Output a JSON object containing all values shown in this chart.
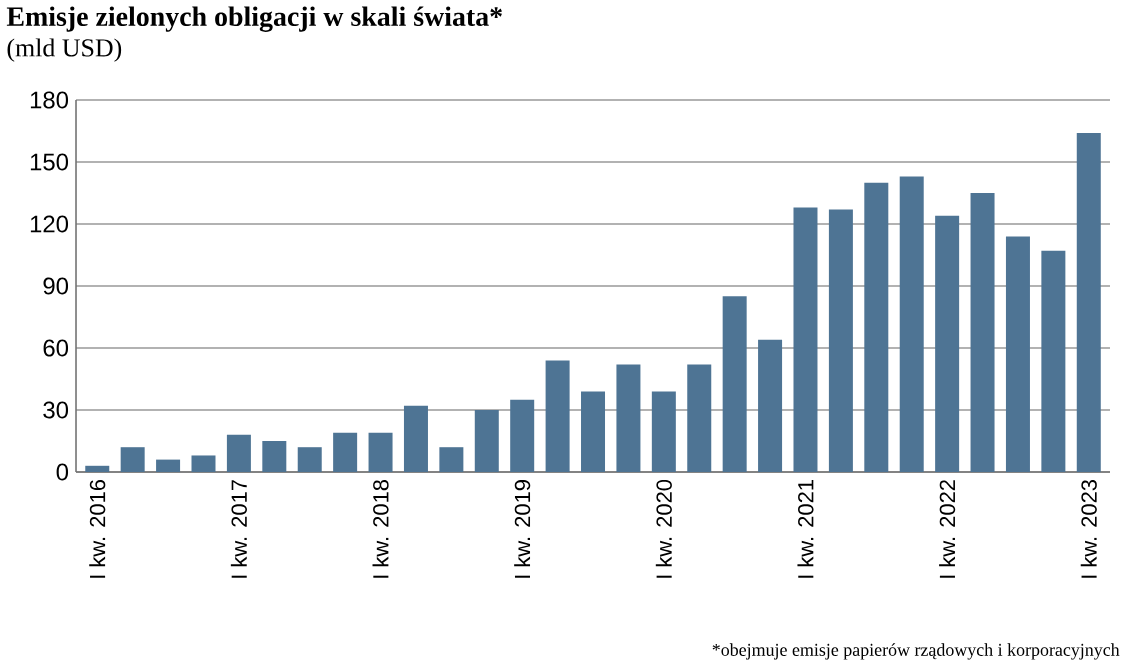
{
  "chart_data": {
    "type": "bar",
    "title": "Emisje zielonych obligacji w skali świata*",
    "subtitle": "(mld USD)",
    "categories": [
      "I kw. 2016",
      null,
      null,
      null,
      "I kw. 2017",
      null,
      null,
      null,
      "I kw. 2018",
      null,
      null,
      null,
      "I kw. 2019",
      null,
      null,
      null,
      "I kw. 2020",
      null,
      null,
      null,
      "I kw. 2021",
      null,
      null,
      null,
      "I kw. 2022",
      null,
      null,
      null,
      "I kw. 2023"
    ],
    "values": [
      3,
      12,
      6,
      8,
      18,
      15,
      12,
      19,
      19,
      32,
      12,
      30,
      35,
      54,
      39,
      52,
      39,
      52,
      85,
      64,
      128,
      127,
      140,
      143,
      124,
      135,
      114,
      107,
      164
    ],
    "color": "#4e7494",
    "ylim": [
      0,
      180
    ],
    "yticks": [
      0,
      30,
      60,
      90,
      120,
      150,
      180
    ],
    "grid": "y",
    "annotations": [
      "*obejmuje emisje papierów rządowych i korporacyjnych"
    ]
  }
}
